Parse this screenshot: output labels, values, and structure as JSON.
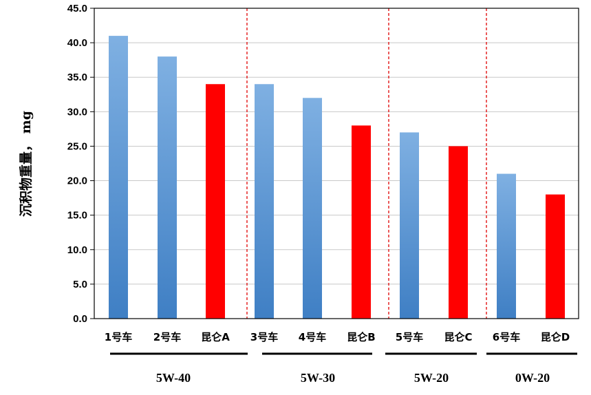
{
  "chart_data": {
    "type": "bar",
    "ylabel": "沉积物重量， mg",
    "xlabel": "",
    "ylim": [
      0,
      45
    ],
    "yticks": [
      "0.0",
      "5.0",
      "10.0",
      "15.0",
      "20.0",
      "25.0",
      "30.0",
      "35.0",
      "40.0",
      "45.0"
    ],
    "grid": true,
    "categories": [
      "1号车",
      "2号车",
      "昆仑A",
      "3号车",
      "4号车",
      "昆仑B",
      "5号车",
      "昆仑C",
      "6号车",
      "昆仑D"
    ],
    "values": [
      41,
      38,
      34,
      34,
      32,
      28,
      27,
      25,
      21,
      18
    ],
    "bar_colors": [
      "#5b9bd5",
      "#5b9bd5",
      "#ff0000",
      "#5b9bd5",
      "#5b9bd5",
      "#ff0000",
      "#5b9bd5",
      "#ff0000",
      "#5b9bd5",
      "#ff0000"
    ],
    "groups": [
      {
        "label": "5W-40",
        "categories": [
          "1号车",
          "2号车",
          "昆仑A"
        ]
      },
      {
        "label": "5W-30",
        "categories": [
          "3号车",
          "4号车",
          "昆仑B"
        ]
      },
      {
        "label": "5W-20",
        "categories": [
          "5号车",
          "昆仑C"
        ]
      },
      {
        "label": "0W-20",
        "categories": [
          "6号车",
          "昆仑D"
        ]
      }
    ],
    "colors": {
      "blue_top": "#7fb0e2",
      "blue_bottom": "#3f7fc4",
      "red": "#ff0000",
      "divider": "#e00000",
      "grid": "#c8c8c8"
    }
  }
}
